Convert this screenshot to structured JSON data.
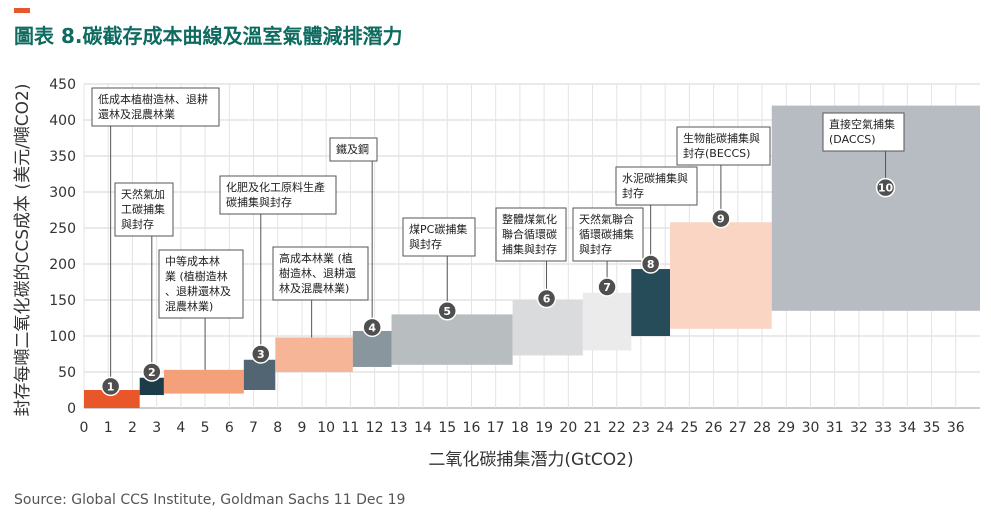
{
  "header": {
    "title": "圖表 8.碳截存成本曲線及溫室氣體減排潛力",
    "accent_color": "#e8562a",
    "title_color": "#0e6b5f"
  },
  "footer": {
    "source": "Source: Global CCS Institute, Goldman Sachs 11 Dec 19"
  },
  "chart_data": {
    "type": "bar",
    "title": "圖表 8.碳截存成本曲線及溫室氣體減排潛力",
    "xlabel": "二氧化碳捕集潛力(GtCO2)",
    "ylabel": "封存每噸二氧化碳的CCS成本 (美元/噸CO2)",
    "xlim": [
      0,
      37
    ],
    "ylim": [
      0,
      450
    ],
    "x_ticks": [
      0,
      1,
      2,
      3,
      4,
      5,
      6,
      7,
      8,
      9,
      10,
      11,
      12,
      13,
      14,
      15,
      16,
      17,
      18,
      19,
      20,
      21,
      22,
      23,
      24,
      25,
      26,
      27,
      28,
      29,
      30,
      31,
      32,
      33,
      34,
      35,
      36
    ],
    "y_ticks": [
      0,
      50,
      100,
      150,
      200,
      250,
      300,
      350,
      400,
      450
    ],
    "grid": true,
    "segments": [
      {
        "id": 1,
        "label": "低成本植樹造林、退耕還林及混農林業",
        "x_start": 0,
        "x_end": 2.3,
        "cost_low": 0,
        "cost_high": 25,
        "color": "#e8562a"
      },
      {
        "id": 2,
        "label": "天然氣加工碳捕集與封存",
        "x_start": 2.3,
        "x_end": 3.3,
        "cost_low": 18,
        "cost_high": 42,
        "color": "#1d3c4a"
      },
      {
        "id": 3,
        "label": "中等成本林業 (植樹造林、退耕還林及混農林業)",
        "x_start": 3.3,
        "x_end": 6.6,
        "cost_low": 20,
        "cost_high": 53,
        "color": "#f4a07a"
      },
      {
        "id": 4,
        "label": "化肥及化工原料生產碳捕集與封存",
        "x_start": 6.6,
        "x_end": 7.9,
        "cost_low": 25,
        "cost_high": 67,
        "color": "#516672"
      },
      {
        "id": 5,
        "label": "高成本林業 (植樹造林、退耕還林及混農林業)",
        "x_start": 7.9,
        "x_end": 11.1,
        "cost_low": 50,
        "cost_high": 98,
        "color": "#f7b597"
      },
      {
        "id": 6,
        "label": "鐵及鋼",
        "x_start": 11.1,
        "x_end": 12.7,
        "cost_low": 57,
        "cost_high": 107,
        "color": "#8a969e"
      },
      {
        "id": 7,
        "label": "煤PC碳捕集與封存",
        "x_start": 12.7,
        "x_end": 17.7,
        "cost_low": 60,
        "cost_high": 130,
        "color": "#b8bdc0"
      },
      {
        "id": 8,
        "label": "整體煤氣化聯合循環碳捕集與封存",
        "x_start": 17.7,
        "x_end": 20.6,
        "cost_low": 73,
        "cost_high": 150,
        "color": "#d9dbdc"
      },
      {
        "id": 9,
        "label": "天然氣聯合循環碳捕集與封存",
        "x_start": 20.6,
        "x_end": 22.6,
        "cost_low": 80,
        "cost_high": 160,
        "color": "#ebebeb"
      },
      {
        "id": 10,
        "label": "水泥碳捕集與封存",
        "x_start": 22.6,
        "x_end": 24.2,
        "cost_low": 100,
        "cost_high": 193,
        "color": "#264c5a"
      },
      {
        "id": 11,
        "label": "生物能碳捕集與封存(BECCS)",
        "x_start": 24.2,
        "x_end": 28.4,
        "cost_low": 110,
        "cost_high": 258,
        "color": "#fbd5c3"
      },
      {
        "id": 12,
        "label": "直接空氣捕集 (DACCS)",
        "x_start": 28.4,
        "x_end": 37,
        "cost_low": 135,
        "cost_high": 420,
        "color": "#b7bcc2"
      }
    ],
    "markers": [
      {
        "number": "1",
        "x": 1.1,
        "y": 30
      },
      {
        "number": "2",
        "x": 2.8,
        "y": 50
      },
      {
        "number": "3",
        "x": 7.3,
        "y": 75
      },
      {
        "number": "4",
        "x": 11.9,
        "y": 112
      },
      {
        "number": "5",
        "x": 15.0,
        "y": 135
      },
      {
        "number": "6",
        "x": 19.1,
        "y": 152
      },
      {
        "number": "7",
        "x": 21.6,
        "y": 168
      },
      {
        "number": "8",
        "x": 23.4,
        "y": 200
      },
      {
        "number": "9",
        "x": 26.3,
        "y": 263
      },
      {
        "number": "10",
        "x": 33.1,
        "y": 306
      }
    ],
    "callouts": [
      {
        "lines": [
          "低成本植樹造林、退耕",
          "還林及混農林業"
        ],
        "anchor_x": 1.1,
        "anchor_y": 30
      },
      {
        "lines": [
          "天然氣加",
          "工碳捕集",
          "與封存"
        ],
        "anchor_x": 2.8,
        "anchor_y": 50
      },
      {
        "lines": [
          "中等成本林",
          "業 (植樹造林",
          "、退耕還林及",
          "混農林業)"
        ],
        "anchor_x": 5.0,
        "anchor_y": 53
      },
      {
        "lines": [
          "化肥及化工原料生產",
          "碳捕集與封存"
        ],
        "anchor_x": 7.3,
        "anchor_y": 75
      },
      {
        "lines": [
          "高成本林業 (植",
          "樹造林、退耕還",
          "林及混農林業)"
        ],
        "anchor_x": 9.4,
        "anchor_y": 98
      },
      {
        "lines": [
          "鐵及鋼"
        ],
        "anchor_x": 11.9,
        "anchor_y": 112
      },
      {
        "lines": [
          "煤PC碳捕集",
          "與封存"
        ],
        "anchor_x": 15.0,
        "anchor_y": 135
      },
      {
        "lines": [
          "整體煤氣化",
          "聯合循環碳",
          "捕集與封存"
        ],
        "anchor_x": 19.1,
        "anchor_y": 152
      },
      {
        "lines": [
          "天然氣聯合",
          "循環碳捕集",
          "與封存"
        ],
        "anchor_x": 21.6,
        "anchor_y": 168
      },
      {
        "lines": [
          "水泥碳捕集與",
          "封存"
        ],
        "anchor_x": 23.4,
        "anchor_y": 200
      },
      {
        "lines": [
          "生物能碳捕集與",
          "封存(BECCS)"
        ],
        "anchor_x": 26.3,
        "anchor_y": 263
      },
      {
        "lines": [
          "直接空氣捕集",
          "(DACCS)"
        ],
        "anchor_x": 33.1,
        "anchor_y": 306
      }
    ]
  }
}
